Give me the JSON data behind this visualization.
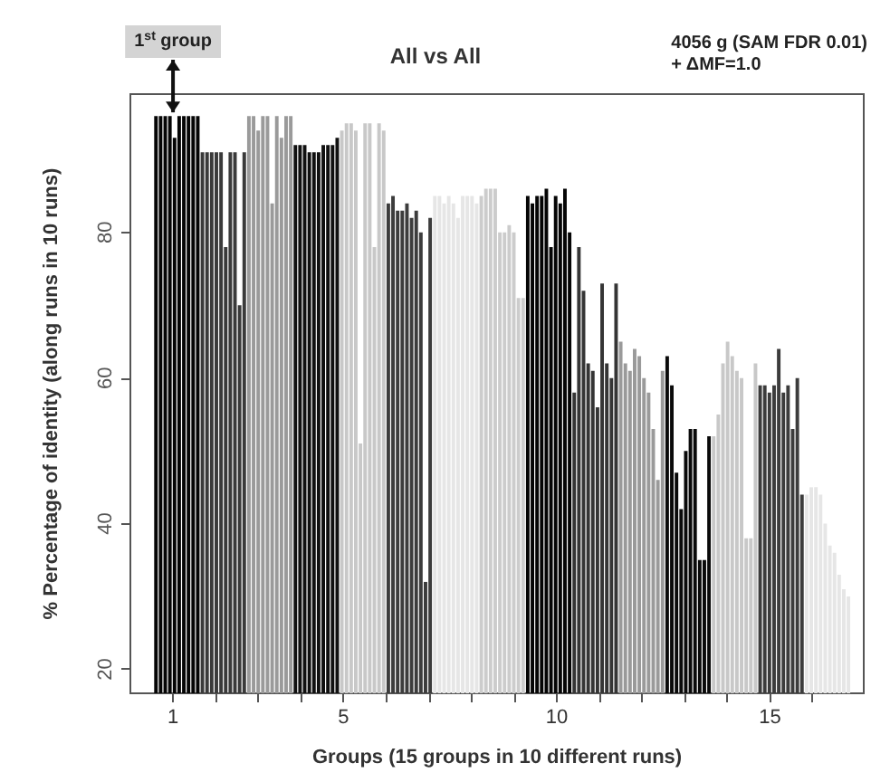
{
  "chart_data": {
    "type": "bar",
    "title": "All vs All",
    "xlabel": "Groups (15 groups in 10 different runs)",
    "ylabel": "% Percentage of identity (along runs in 10 runs)",
    "annotations": [
      {
        "text": "1$^{st}$ group",
        "x": 1,
        "y": 96
      },
      "4056 g (SAM FDR 0.01)\n+ ΔMF=1.0"
    ],
    "xlim": [
      0,
      17.2
    ],
    "xticks": [
      1,
      {
        "value": 2,
        "label": null
      },
      {
        "value": 3,
        "label": null
      },
      {
        "value": 4,
        "label": null
      },
      5,
      {
        "value": 6,
        "label": null
      },
      {
        "value": 7,
        "label": null
      },
      {
        "value": 8,
        "label": null
      },
      {
        "value": 9,
        "label": null
      },
      10,
      {
        "value": 11,
        "label": null
      },
      {
        "value": 12,
        "label": null
      },
      {
        "value": 13,
        "label": null
      },
      {
        "value": 14,
        "label": null
      },
      15,
      {
        "value": 16,
        "label": null
      }
    ],
    "ylim": [
      16.7,
      99
    ],
    "yticks": [
      20,
      40,
      60,
      80
    ],
    "grid": false,
    "series": [
      {
        "color": "#050505",
        "x": [
          0.6,
          0.709,
          0.818,
          0.927,
          1.036,
          1.145,
          1.254,
          1.363,
          1.472,
          1.581
        ],
        "values": [
          96,
          96,
          96,
          96,
          93,
          96,
          96,
          96,
          96,
          96
        ]
      },
      {
        "color": "#3a3a3a",
        "x": [
          1.69,
          1.799,
          1.908,
          2.017,
          2.126,
          2.235,
          2.344,
          2.453,
          2.562,
          2.671
        ],
        "values": [
          91,
          91,
          91,
          91,
          91,
          78,
          91,
          91,
          70,
          91
        ]
      },
      {
        "color": "#9a9a9a",
        "x": [
          2.78,
          2.889,
          2.998,
          3.107,
          3.216,
          3.325,
          3.434,
          3.543,
          3.652,
          3.761
        ],
        "values": [
          96,
          96,
          94,
          96,
          96,
          84,
          96,
          93,
          96,
          96
        ]
      },
      {
        "color": "#111111",
        "x": [
          3.87,
          3.979,
          4.088,
          4.197,
          4.306,
          4.415,
          4.524,
          4.633,
          4.742,
          4.851
        ],
        "values": [
          92,
          92,
          92,
          91,
          91,
          91,
          92,
          92,
          92,
          93
        ]
      },
      {
        "color": "#c8c8c8",
        "x": [
          4.96,
          5.069,
          5.178,
          5.287,
          5.396,
          5.505,
          5.614,
          5.723,
          5.832,
          5.941
        ],
        "values": [
          94,
          95,
          95,
          94,
          51,
          95,
          95,
          78,
          95,
          94
        ]
      },
      {
        "color": "#3c3c3c",
        "x": [
          6.05,
          6.159,
          6.268,
          6.377,
          6.486,
          6.595,
          6.704,
          6.813,
          6.922,
          7.031
        ],
        "values": [
          84,
          85,
          83,
          83,
          84,
          82,
          83,
          80,
          32,
          82
        ]
      },
      {
        "color": "#e6e6e6",
        "x": [
          7.14,
          7.249,
          7.358,
          7.467,
          7.576,
          7.685,
          7.794,
          7.903,
          8.012,
          8.121
        ],
        "values": [
          85,
          85,
          84,
          85,
          84,
          82,
          85,
          85,
          85,
          84
        ]
      },
      {
        "color": "#cccccc",
        "x": [
          8.23,
          8.339,
          8.448,
          8.557,
          8.666,
          8.775,
          8.884,
          8.993,
          9.102,
          9.211
        ],
        "values": [
          85,
          86,
          86,
          86,
          80,
          80,
          81,
          80,
          71,
          71
        ]
      },
      {
        "color": "#050505",
        "x": [
          9.32,
          9.429,
          9.538,
          9.647,
          9.756,
          9.865,
          9.974,
          10.083,
          10.192,
          10.301
        ],
        "values": [
          85,
          84,
          85,
          85,
          86,
          78,
          85,
          84,
          86,
          80
        ]
      },
      {
        "color": "#353535",
        "x": [
          10.41,
          10.519,
          10.628,
          10.737,
          10.846,
          10.955,
          11.064,
          11.173,
          11.282,
          11.391
        ],
        "values": [
          58,
          78,
          72,
          62,
          61,
          56,
          73,
          62,
          60,
          73
        ]
      },
      {
        "color": "#9a9a9a",
        "x": [
          11.5,
          11.609,
          11.718,
          11.827,
          11.936,
          12.045,
          12.154,
          12.263,
          12.372,
          12.481
        ],
        "values": [
          65,
          62,
          61,
          64,
          63,
          60,
          58,
          53,
          46,
          61
        ]
      },
      {
        "color": "#0a0a0a",
        "x": [
          12.59,
          12.699,
          12.808,
          12.917,
          13.026,
          13.135,
          13.244,
          13.353,
          13.462,
          13.571
        ],
        "values": [
          63,
          59,
          47,
          42,
          50,
          53,
          53,
          35,
          35,
          52
        ]
      },
      {
        "color": "#c8c8c8",
        "x": [
          13.68,
          13.789,
          13.898,
          14.007,
          14.116,
          14.225,
          14.334,
          14.443,
          14.552,
          14.661
        ],
        "values": [
          52,
          55,
          62,
          65,
          63,
          61,
          60,
          38,
          38,
          62
        ]
      },
      {
        "color": "#3c3c3c",
        "x": [
          14.77,
          14.879,
          14.988,
          15.097,
          15.206,
          15.315,
          15.424,
          15.533,
          15.642,
          15.751
        ],
        "values": [
          59,
          59,
          58,
          59,
          64,
          58,
          59,
          53,
          60,
          44
        ]
      },
      {
        "color": "#e6e6e6",
        "x": [
          15.86,
          15.969,
          16.078,
          16.187,
          16.296,
          16.405,
          16.514,
          16.623,
          16.732,
          16.841
        ],
        "values": [
          44,
          45,
          45,
          44,
          40,
          37,
          36,
          33,
          31,
          30
        ]
      }
    ]
  }
}
